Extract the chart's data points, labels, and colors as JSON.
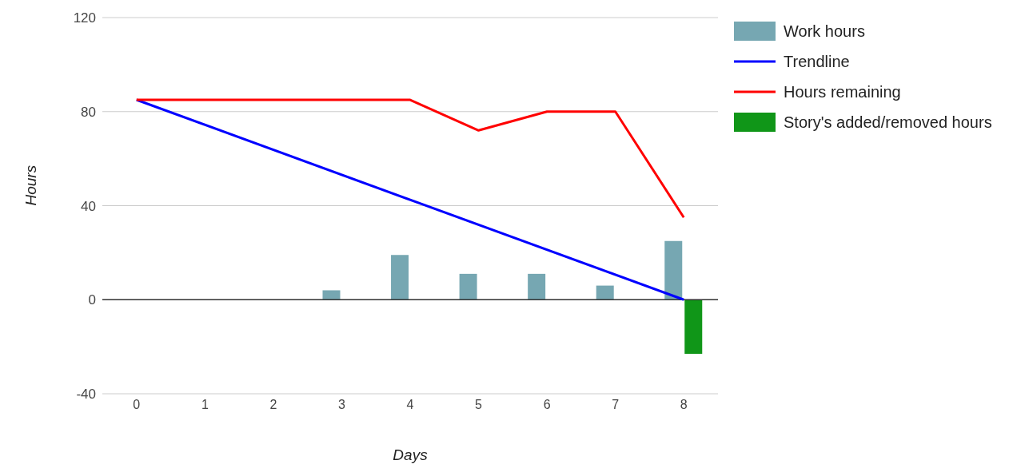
{
  "chart_data": {
    "type": "bar",
    "xlabel": "Days",
    "ylabel": "Hours",
    "categories": [
      "0",
      "1",
      "2",
      "3",
      "4",
      "5",
      "6",
      "7",
      "8"
    ],
    "series": [
      {
        "name": "Work hours",
        "color": "#76a7b2",
        "values": [
          0,
          0,
          0,
          4,
          19,
          11,
          11,
          6,
          25
        ]
      },
      {
        "name": "Trendline",
        "type": "line",
        "color": "#0000ff",
        "values": [
          85,
          null,
          null,
          null,
          null,
          null,
          null,
          null,
          0
        ]
      },
      {
        "name": "Hours remaining",
        "type": "line",
        "color": "#ff0000",
        "values": [
          85,
          85,
          85,
          85,
          85,
          72,
          80,
          80,
          35
        ]
      },
      {
        "name": "Story's added/removed hours",
        "color": "#109618",
        "values": [
          0,
          0,
          0,
          0,
          0,
          0,
          0,
          0,
          -23
        ]
      }
    ],
    "ylim": [
      -40,
      120
    ],
    "yticks": [
      -40,
      0,
      40,
      80,
      120
    ],
    "grid": "y",
    "legend": "top right",
    "marker": "none",
    "line_style": "solid",
    "ref_lines": [
      {
        "axis": "y",
        "value": 0,
        "color": "#333333"
      }
    ]
  }
}
